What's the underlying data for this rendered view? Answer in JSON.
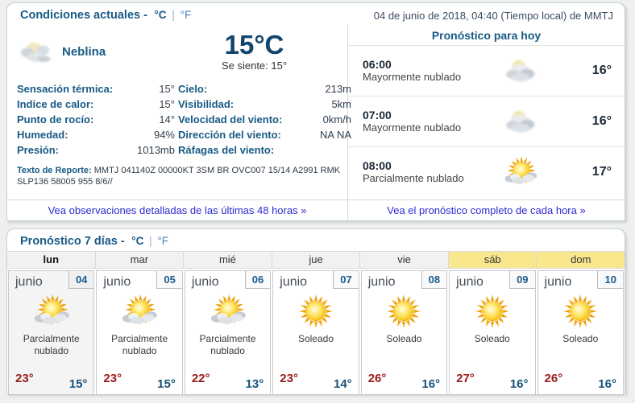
{
  "units": {
    "c": "°C",
    "sep": "|",
    "f": "°F"
  },
  "colors": {
    "accent_blue": "#185a85",
    "link_blue": "#2b2bd2",
    "high_temp_red": "#9b1b1b",
    "low_temp_blue": "#17527a",
    "weekend_yellow": "#f9e78e"
  },
  "current": {
    "title": "Condiciones actuales -",
    "datetime": "04 de junio de 2018, 04:40 (Tiempo local) de MMTJ",
    "condition": "Neblina",
    "icon": "fog",
    "temperature": "15°C",
    "feels_like": "Se siente: 15°",
    "details_left": [
      {
        "label": "Sensación térmica:",
        "value": "15°"
      },
      {
        "label": "Indice de calor:",
        "value": "15°"
      },
      {
        "label": "Punto de rocío:",
        "value": "14°"
      },
      {
        "label": "Humedad:",
        "value": "94%"
      },
      {
        "label": "Presión:",
        "value": "1013mb"
      }
    ],
    "details_right": [
      {
        "label": "Cielo:",
        "value": "213m"
      },
      {
        "label": "Visibilidad:",
        "value": "5km"
      },
      {
        "label": "Velocidad del viento:",
        "value": "0km/h"
      },
      {
        "label": "Dirección del viento:",
        "value": "NA NA"
      },
      {
        "label": "Ráfagas del viento:",
        "value": ""
      }
    ],
    "report_label": "Texto de Reporte:",
    "report_text": "MMTJ 041140Z 00000KT 3SM BR OVC007 15/14 A2991 RMK SLP136 58005 955 8/6//",
    "history_link": "Vea observaciones detalladas de las últimas 48 horas »"
  },
  "today_forecast": {
    "title": "Pronóstico para hoy",
    "hours": [
      {
        "time": "06:00",
        "condition": "Mayormente nublado",
        "icon": "mostly",
        "temp": "16°"
      },
      {
        "time": "07:00",
        "condition": "Mayormente nublado",
        "icon": "mostly",
        "temp": "16°"
      },
      {
        "time": "08:00",
        "condition": "Parcialmente nublado",
        "icon": "partly",
        "temp": "17°"
      }
    ],
    "hourly_link": "Vea el pronóstico completo de cada hora »"
  },
  "week_forecast": {
    "title": "Pronóstico 7 días -",
    "days": [
      {
        "dow": "lun",
        "month": "junio",
        "day": "04",
        "condition": "Parcialmente nublado",
        "icon": "partly",
        "high": "23°",
        "low": "15°"
      },
      {
        "dow": "mar",
        "month": "junio",
        "day": "05",
        "condition": "Parcialmente nublado",
        "icon": "partly",
        "high": "23°",
        "low": "15°"
      },
      {
        "dow": "mié",
        "month": "junio",
        "day": "06",
        "condition": "Parcialmente nublado",
        "icon": "partly",
        "high": "22°",
        "low": "13°"
      },
      {
        "dow": "jue",
        "month": "junio",
        "day": "07",
        "condition": "Soleado",
        "icon": "sunny",
        "high": "23°",
        "low": "14°"
      },
      {
        "dow": "vie",
        "month": "junio",
        "day": "08",
        "condition": "Soleado",
        "icon": "sunny",
        "high": "26°",
        "low": "16°"
      },
      {
        "dow": "sáb",
        "month": "junio",
        "day": "09",
        "condition": "Soleado",
        "icon": "sunny",
        "high": "27°",
        "low": "16°"
      },
      {
        "dow": "dom",
        "month": "junio",
        "day": "10",
        "condition": "Soleado",
        "icon": "sunny",
        "high": "26°",
        "low": "16°"
      }
    ]
  }
}
